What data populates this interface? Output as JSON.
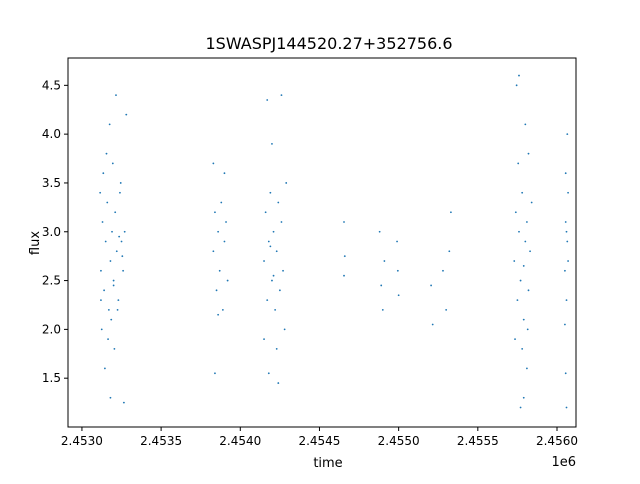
{
  "chart_data": {
    "type": "scatter",
    "title": "1SWASPJ144520.27+352756.6",
    "xlabel": "time",
    "ylabel": "flux",
    "x_offset_label": "1e6",
    "xlim": [
      2452912,
      2456120
    ],
    "ylim": [
      1.0,
      4.78
    ],
    "xticks": [
      2453000,
      2453500,
      2454000,
      2454500,
      2455000,
      2455500,
      2456000
    ],
    "xtick_labels": [
      "2.4530",
      "2.4535",
      "2.4540",
      "2.4545",
      "2.4550",
      "2.4555",
      "2.4560"
    ],
    "yticks": [
      1.5,
      2.0,
      2.5,
      3.0,
      3.5,
      4.0,
      4.5
    ],
    "ytick_labels": [
      "1.5",
      "2.0",
      "2.5",
      "3.0",
      "3.5",
      "4.0",
      "4.5"
    ],
    "grid": false,
    "color": "#1f77b4",
    "points": [
      [
        2453120,
        2.6
      ],
      [
        2453130,
        3.1
      ],
      [
        2453140,
        2.4
      ],
      [
        2453150,
        2.9
      ],
      [
        2453160,
        3.3
      ],
      [
        2453170,
        2.2
      ],
      [
        2453180,
        2.7
      ],
      [
        2453190,
        3.0
      ],
      [
        2453200,
        2.5
      ],
      [
        2453210,
        3.2
      ],
      [
        2453220,
        2.8
      ],
      [
        2453230,
        2.3
      ],
      [
        2453240,
        3.4
      ],
      [
        2453250,
        2.9
      ],
      [
        2453260,
        2.6
      ],
      [
        2453270,
        3.0
      ],
      [
        2453125,
        2.0
      ],
      [
        2453135,
        3.6
      ],
      [
        2453145,
        1.6
      ],
      [
        2453155,
        3.8
      ],
      [
        2453165,
        1.9
      ],
      [
        2453175,
        4.1
      ],
      [
        2453185,
        2.1
      ],
      [
        2453195,
        3.7
      ],
      [
        2453205,
        1.8
      ],
      [
        2453215,
        4.4
      ],
      [
        2453225,
        2.2
      ],
      [
        2453180,
        1.3
      ],
      [
        2453245,
        3.5
      ],
      [
        2453265,
        1.25
      ],
      [
        2453280,
        4.2
      ],
      [
        2453115,
        3.4
      ],
      [
        2453120,
        2.3
      ],
      [
        2453200,
        2.45
      ],
      [
        2453235,
        2.95
      ],
      [
        2453255,
        2.75
      ],
      [
        2453830,
        2.8
      ],
      [
        2453840,
        3.2
      ],
      [
        2453850,
        2.4
      ],
      [
        2453860,
        3.0
      ],
      [
        2453870,
        2.6
      ],
      [
        2453880,
        3.3
      ],
      [
        2453890,
        2.2
      ],
      [
        2453900,
        2.9
      ],
      [
        2453910,
        3.1
      ],
      [
        2453920,
        2.5
      ],
      [
        2453830,
        3.7
      ],
      [
        2453840,
        1.55
      ],
      [
        2453900,
        3.6
      ],
      [
        2453860,
        2.15
      ],
      [
        2454150,
        2.7
      ],
      [
        2454160,
        3.2
      ],
      [
        2454170,
        2.3
      ],
      [
        2454180,
        2.9
      ],
      [
        2454190,
        3.4
      ],
      [
        2454200,
        2.5
      ],
      [
        2454210,
        3.0
      ],
      [
        2454220,
        2.2
      ],
      [
        2454230,
        2.8
      ],
      [
        2454240,
        3.3
      ],
      [
        2454250,
        2.4
      ],
      [
        2454260,
        3.1
      ],
      [
        2454270,
        2.6
      ],
      [
        2454280,
        2.0
      ],
      [
        2454290,
        3.5
      ],
      [
        2454170,
        4.35
      ],
      [
        2454260,
        4.4
      ],
      [
        2454180,
        1.55
      ],
      [
        2454240,
        1.45
      ],
      [
        2454200,
        3.9
      ],
      [
        2454150,
        1.9
      ],
      [
        2454230,
        1.8
      ],
      [
        2454210,
        2.55
      ],
      [
        2454190,
        2.85
      ],
      [
        2454655,
        3.1
      ],
      [
        2454655,
        2.55
      ],
      [
        2454660,
        2.75
      ],
      [
        2454880,
        3.0
      ],
      [
        2454890,
        2.45
      ],
      [
        2454900,
        2.2
      ],
      [
        2454910,
        2.7
      ],
      [
        2454990,
        2.9
      ],
      [
        2454995,
        2.6
      ],
      [
        2455000,
        2.35
      ],
      [
        2455205,
        2.45
      ],
      [
        2455215,
        2.05
      ],
      [
        2455280,
        2.6
      ],
      [
        2455300,
        2.2
      ],
      [
        2455320,
        2.8
      ],
      [
        2455330,
        3.2
      ],
      [
        2455730,
        2.7
      ],
      [
        2455740,
        3.2
      ],
      [
        2455750,
        2.3
      ],
      [
        2455760,
        3.0
      ],
      [
        2455770,
        2.5
      ],
      [
        2455780,
        3.4
      ],
      [
        2455790,
        2.1
      ],
      [
        2455800,
        2.9
      ],
      [
        2455810,
        3.1
      ],
      [
        2455820,
        2.4
      ],
      [
        2455830,
        2.8
      ],
      [
        2455840,
        3.3
      ],
      [
        2455745,
        4.5
      ],
      [
        2455760,
        4.6
      ],
      [
        2455770,
        1.2
      ],
      [
        2455790,
        1.3
      ],
      [
        2455800,
        4.1
      ],
      [
        2455810,
        1.6
      ],
      [
        2455735,
        1.9
      ],
      [
        2455820,
        3.8
      ],
      [
        2455780,
        1.8
      ],
      [
        2455755,
        3.7
      ],
      [
        2455815,
        2.0
      ],
      [
        2455790,
        2.65
      ],
      [
        2456050,
        2.6
      ],
      [
        2456055,
        3.1
      ],
      [
        2456060,
        2.3
      ],
      [
        2456065,
        2.9
      ],
      [
        2456070,
        3.4
      ],
      [
        2456050,
        2.05
      ],
      [
        2456060,
        3.0
      ],
      [
        2456065,
        4.0
      ],
      [
        2456055,
        1.55
      ],
      [
        2456060,
        1.2
      ],
      [
        2456070,
        2.7
      ],
      [
        2456055,
        3.6
      ]
    ]
  }
}
